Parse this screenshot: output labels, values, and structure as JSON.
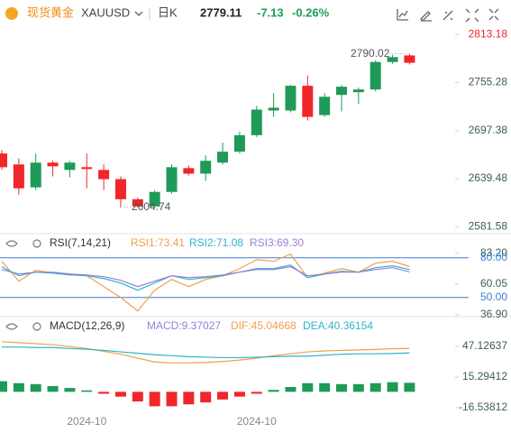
{
  "header": {
    "name": "现货黄金",
    "symbol": "XAUUSD",
    "period": "日K",
    "price": "2779.11",
    "change": "-7.13",
    "change_pct": "-0.26%"
  },
  "chart_data": [
    {
      "type": "candlestick",
      "categories": [
        null,
        null,
        null,
        null,
        null,
        "2024-10",
        null,
        null,
        null,
        null,
        null,
        null,
        null,
        null,
        null,
        "2024-10",
        null,
        null,
        null,
        null,
        null,
        null,
        null,
        null,
        null
      ],
      "open": [
        2669.8,
        2656.6,
        2629.0,
        2658.8,
        2650.0,
        2653.3,
        2650.0,
        2638.9,
        2614.7,
        2606.0,
        2623.5,
        2652.2,
        2645.5,
        2658.8,
        2672.0,
        2691.9,
        2721.6,
        2721.6,
        2751.4,
        2716.1,
        2740.4,
        2743.7,
        2747.0,
        2780.1,
        2788.0
      ],
      "high": [
        2674.0,
        2664.3,
        2669.8,
        2661.0,
        2661.0,
        2669.8,
        2656.6,
        2642.2,
        2616.9,
        2625.7,
        2656.6,
        2655.5,
        2667.6,
        2683.0,
        2696.3,
        2727.2,
        2742.6,
        2752.5,
        2763.6,
        2742.6,
        2752.5,
        2749.2,
        2782.3,
        2788.5,
        2790.02
      ],
      "low": [
        2650.0,
        2620.2,
        2625.7,
        2642.2,
        2641.1,
        2627.9,
        2625.7,
        2604.74,
        2605.2,
        2605.5,
        2621.3,
        2643.3,
        2636.7,
        2656.6,
        2669.8,
        2689.7,
        2713.9,
        2719.4,
        2709.5,
        2713.9,
        2720.5,
        2729.4,
        2744.8,
        2777.9,
        2777.0
      ],
      "close": [
        2653.3,
        2627.9,
        2658.8,
        2654.4,
        2658.8,
        2651.1,
        2638.9,
        2614.7,
        2606.0,
        2623.5,
        2653.3,
        2645.5,
        2661.0,
        2672.0,
        2691.9,
        2722.7,
        2725.0,
        2751.4,
        2713.9,
        2738.2,
        2750.3,
        2747.0,
        2780.1,
        2786.0,
        2779.11
      ],
      "up_color": "#1f9a58",
      "down_color": "#f0262b",
      "ylim": [
        2574.3,
        2822.2
      ],
      "yticks": [
        2581.58,
        2639.48,
        2697.38,
        2755.28,
        2813.18
      ]
    },
    {
      "type": "line",
      "title": "RSI(7,14,21)",
      "series": [
        {
          "name": "RSI1:73.41",
          "color": "#f0a04b",
          "values": [
            77.3,
            62.3,
            70.5,
            68.4,
            67.7,
            66.4,
            58.2,
            50.0,
            39.8,
            55.5,
            63.6,
            58.2,
            63.6,
            66.4,
            71.8,
            78.6,
            77.3,
            82.7,
            65.0,
            68.4,
            71.8,
            69.1,
            75.9,
            77.3,
            73.41
          ]
        },
        {
          "name": "RSI2:71.08",
          "color": "#2fb3cf",
          "values": [
            73.2,
            66.4,
            69.1,
            68.4,
            67.0,
            66.4,
            64.3,
            60.9,
            55.5,
            60.9,
            66.4,
            63.6,
            65.0,
            66.4,
            69.1,
            71.8,
            71.8,
            74.5,
            65.0,
            67.7,
            69.8,
            69.1,
            72.5,
            73.9,
            71.08
          ]
        },
        {
          "name": "RSI3:69.30",
          "color": "#9a7fd6",
          "values": [
            71.1,
            67.7,
            69.1,
            69.1,
            67.7,
            67.0,
            65.7,
            63.0,
            58.2,
            62.3,
            66.4,
            65.0,
            65.7,
            67.0,
            69.1,
            71.1,
            71.1,
            73.2,
            66.4,
            67.7,
            69.1,
            69.1,
            71.1,
            72.5,
            69.3
          ]
        }
      ],
      "ylim": [
        36.9,
        83.2
      ],
      "yticks": [
        {
          "value": 36.9,
          "label": "36.90"
        },
        60.05,
        {
          "value": 83.2,
          "label": "83.20"
        }
      ],
      "hlines": [
        {
          "value": 80,
          "label": "80.00"
        },
        {
          "value": 50,
          "label": "50.00"
        }
      ],
      "hline_color": "#3d7fd6"
    },
    {
      "type": "macd",
      "title": "MACD(12,26,9)",
      "series": [
        {
          "name": "MACD:9.37027",
          "color": "#9a7fd6",
          "kind": "bar",
          "values": [
            11,
            9,
            8,
            6,
            4,
            1.5,
            -2,
            -5,
            -10,
            -15,
            -15,
            -13,
            -11,
            -8,
            -5,
            -2,
            2,
            5,
            9,
            9,
            8,
            8,
            9,
            10,
            9.37027
          ]
        },
        {
          "name": "DIF:45.04668",
          "color": "#f0a04b",
          "kind": "line",
          "values": [
            52,
            51,
            50,
            49,
            47,
            45,
            42,
            39,
            35,
            31,
            30,
            30,
            30.5,
            31.5,
            33,
            35,
            37.5,
            39.5,
            41.5,
            42.5,
            43,
            43.5,
            44,
            44.8,
            45.04668
          ]
        },
        {
          "name": "DEA:40.36154",
          "color": "#2fb3cf",
          "kind": "line",
          "values": [
            46.5,
            46.5,
            46,
            46,
            45,
            44.25,
            43,
            41.5,
            40,
            38.5,
            37.5,
            36.5,
            36,
            35.5,
            35.5,
            36,
            36.5,
            37,
            37,
            38,
            39,
            39.5,
            39.5,
            39.8,
            40.36154
          ]
        }
      ],
      "up_color": "#1f9a58",
      "down_color": "#f0262b",
      "ylim": [
        -25.9,
        58.4
      ],
      "yticks": [
        -16.53812,
        15.29412,
        47.12637
      ]
    }
  ]
}
